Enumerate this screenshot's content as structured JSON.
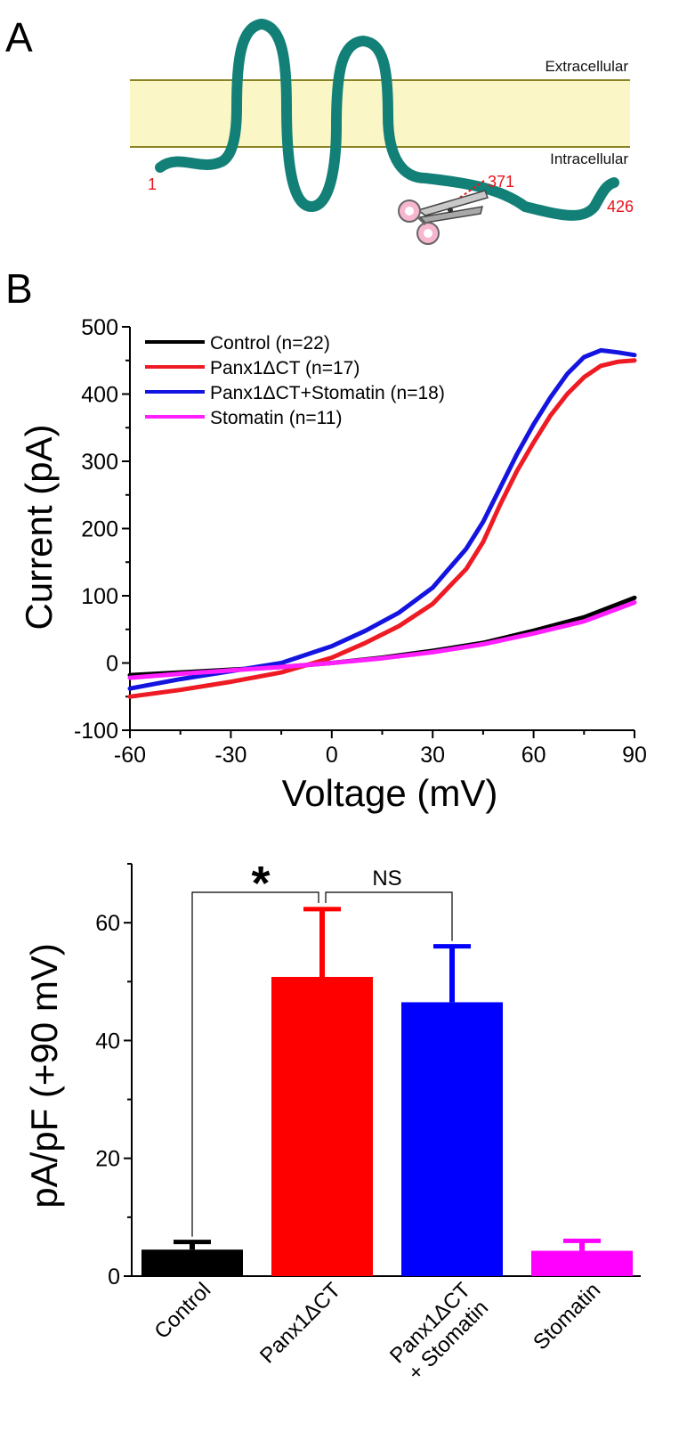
{
  "panel_a": {
    "letter": "A",
    "extracellular_label": "Extracellular",
    "intracellular_label": "Intracellular",
    "residue_start": "1",
    "residue_cut": "371",
    "residue_end": "426",
    "protein_color": "#138078",
    "membrane_fill": "#fbf6c5",
    "membrane_line": "#8b8424",
    "residue_color": "#e8141b"
  },
  "panel_b": {
    "letter": "B"
  },
  "chart_data": [
    {
      "type": "line",
      "title": "",
      "xlabel": "Voltage (mV)",
      "ylabel": "Current (pA)",
      "xlim": [
        -60,
        90
      ],
      "ylim": [
        -100,
        500
      ],
      "xticks": [
        -60,
        -30,
        0,
        30,
        60,
        90
      ],
      "yticks": [
        -100,
        0,
        100,
        200,
        300,
        400,
        500
      ],
      "legend_position": "top-left",
      "series": [
        {
          "name": "Control (n=22)",
          "color": "#000000",
          "x": [
            -60,
            -45,
            -30,
            -15,
            0,
            15,
            30,
            45,
            60,
            75,
            90
          ],
          "y": [
            -18,
            -14,
            -10,
            -6,
            0,
            8,
            18,
            30,
            48,
            68,
            97
          ]
        },
        {
          "name": "Panx1ΔCT (n=17)",
          "color": "#ee1b24",
          "x": [
            -60,
            -45,
            -30,
            -15,
            0,
            10,
            20,
            30,
            40,
            45,
            50,
            55,
            60,
            65,
            70,
            75,
            80,
            85,
            90
          ],
          "y": [
            -50,
            -40,
            -28,
            -14,
            8,
            30,
            55,
            88,
            140,
            180,
            235,
            285,
            328,
            368,
            400,
            425,
            442,
            448,
            450
          ]
        },
        {
          "name": "Panx1ΔCT+Stomatin (n=18)",
          "color": "#1414e0",
          "x": [
            -60,
            -45,
            -30,
            -15,
            0,
            10,
            20,
            30,
            40,
            45,
            50,
            55,
            60,
            65,
            70,
            75,
            80,
            85,
            90
          ],
          "y": [
            -38,
            -24,
            -12,
            0,
            25,
            48,
            75,
            112,
            170,
            210,
            260,
            310,
            355,
            395,
            430,
            455,
            465,
            462,
            458
          ]
        },
        {
          "name": "Stomatin (n=11)",
          "color": "#ff1fff",
          "x": [
            -60,
            -45,
            -30,
            -15,
            0,
            15,
            30,
            45,
            60,
            75,
            90
          ],
          "y": [
            -22,
            -16,
            -11,
            -6,
            0,
            7,
            16,
            28,
            44,
            62,
            90
          ]
        }
      ]
    },
    {
      "type": "bar",
      "title": "",
      "xlabel": "",
      "ylabel": "pA/pF (+90 mV)",
      "ylim": [
        0,
        70
      ],
      "yticks": [
        0,
        20,
        40,
        60
      ],
      "categories": [
        "Control",
        "Panx1ΔCT",
        "Panx1ΔCT\n+ Stomatin",
        "Stomatin"
      ],
      "values": [
        4.5,
        50.8,
        46.5,
        4.3
      ],
      "errors": [
        1.3,
        11.5,
        9.5,
        1.7
      ],
      "colors": [
        "#000000",
        "#ff0000",
        "#0000ff",
        "#ff00ff"
      ],
      "annotations": [
        {
          "between": [
            "Control",
            "Panx1ΔCT"
          ],
          "label": "*"
        },
        {
          "between": [
            "Panx1ΔCT",
            "Panx1ΔCT\n+ Stomatin"
          ],
          "label": "NS"
        }
      ]
    }
  ]
}
